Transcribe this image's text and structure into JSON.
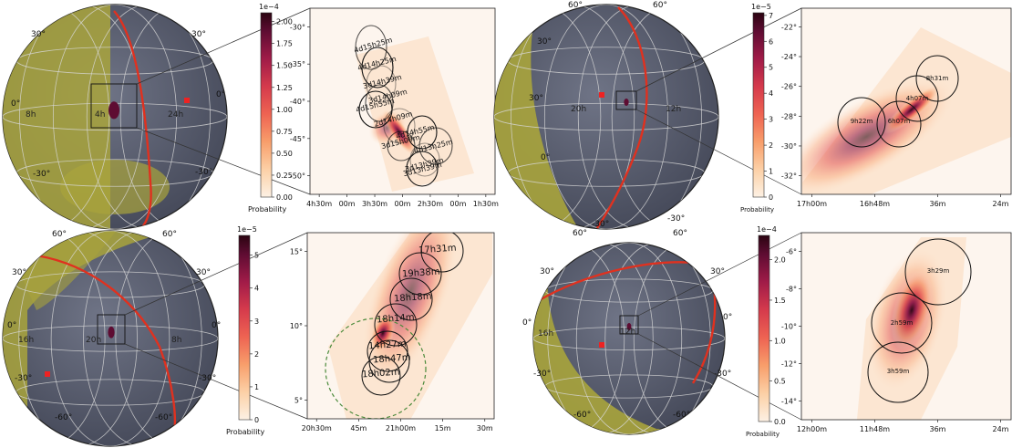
{
  "colorbar_label": "Probability",
  "panels": [
    {
      "id": "a",
      "globe": {
        "lat_labels": [
          "30°",
          "30°",
          "0°",
          "0°",
          "-30°",
          "-30°"
        ],
        "lon_labels": [
          "8h",
          "4h",
          "24h"
        ],
        "overlay_color": "#a9a43c"
      },
      "colorbar": {
        "exponent": "1e−4",
        "ticks": [
          "0.00",
          "0.25",
          "0.50",
          "0.75",
          "1.00",
          "1.25",
          "1.50",
          "1.75",
          "2.00"
        ],
        "max": 2.1
      },
      "chart_data": {
        "type": "heatmap",
        "x_ticks": [
          "4h30m",
          "00m",
          "3h30m",
          "00m",
          "2h30m",
          "00m",
          "1h30m"
        ],
        "y_ticks": [
          "-30°",
          "-35°",
          "-40°",
          "-45°",
          "-50°"
        ],
        "circles": [
          {
            "label": "4d15h25m"
          },
          {
            "label": "4d14h25m"
          },
          {
            "label": "3d14h39m"
          },
          {
            "label": "3d14h09m"
          },
          {
            "label": "4d15h55m"
          },
          {
            "label": "2d14h09m"
          },
          {
            "label": "4d13h25m"
          },
          {
            "label": "4d14h55m"
          },
          {
            "label": "3d13h39m"
          },
          {
            "label": "3d15h09m"
          },
          {
            "label": "3d13h39m"
          }
        ]
      }
    },
    {
      "id": "b",
      "globe": {
        "lat_labels": [
          "60°",
          "60°",
          "30°",
          "30°",
          "0°",
          "-30°",
          "-30°",
          "-60°",
          "-60°"
        ],
        "lon_labels": [
          "20h",
          "12h"
        ],
        "overlay_color": "#a9a43c"
      },
      "colorbar": {
        "exponent": "1e−5",
        "ticks": [
          "0",
          "1",
          "2",
          "3",
          "4",
          "5",
          "6",
          "7"
        ],
        "max": 7.1
      },
      "chart_data": {
        "type": "heatmap",
        "x_ticks": [
          "17h00m",
          "16h48m",
          "36m",
          "24m"
        ],
        "y_ticks": [
          "-22°",
          "-24°",
          "-26°",
          "-28°",
          "-30°",
          "-32°"
        ],
        "circles": [
          {
            "label": "9h22m"
          },
          {
            "label": "8h31m"
          },
          {
            "label": "6h07m"
          },
          {
            "label": "4h07m"
          }
        ]
      }
    },
    {
      "id": "c",
      "globe": {
        "lat_labels": [
          "60°",
          "60°",
          "30°",
          "30°",
          "0°",
          "0°",
          "-30°",
          "-30°",
          "-60°",
          "-60°"
        ],
        "lon_labels": [
          "16h",
          "20h",
          "8h"
        ],
        "overlay_color": "#a9a43c"
      },
      "colorbar": {
        "exponent": "1e−5",
        "ticks": [
          "0",
          "1",
          "2",
          "3",
          "4",
          "5"
        ],
        "max": 5.6
      },
      "chart_data": {
        "type": "heatmap",
        "x_ticks": [
          "20h30m",
          "45m",
          "21h00m",
          "15m",
          "30m"
        ],
        "y_ticks": [
          "15°",
          "10°",
          "5°"
        ],
        "circles": [
          {
            "label": "17h31m"
          },
          {
            "label": "19h38m"
          },
          {
            "label": "18h18m"
          },
          {
            "label": "18h14m"
          },
          {
            "label": "14h27m"
          },
          {
            "label": "18h47m"
          },
          {
            "label": "18h02m"
          }
        ]
      }
    },
    {
      "id": "d",
      "globe": {
        "lat_labels": [
          "60°",
          "60°",
          "30°",
          "30°",
          "0°",
          "0°",
          "-30°",
          "-30°",
          "-60°",
          "-60°"
        ],
        "lon_labels": [
          "16h",
          "12h"
        ],
        "overlay_color": "#a9a43c"
      },
      "colorbar": {
        "exponent": "1e−4",
        "ticks": [
          "0.0",
          "0.5",
          "1.0",
          "1.5",
          "2.0"
        ],
        "max": 2.3
      },
      "chart_data": {
        "type": "heatmap",
        "x_ticks": [
          "12h00m",
          "11h48m",
          "36m",
          "24m"
        ],
        "y_ticks": [
          "-6°",
          "-8°",
          "-10°",
          "-12°",
          "-14°"
        ],
        "circles": [
          {
            "label": "3h29m"
          },
          {
            "label": "2h59m"
          },
          {
            "label": "3h59m"
          }
        ]
      }
    }
  ]
}
